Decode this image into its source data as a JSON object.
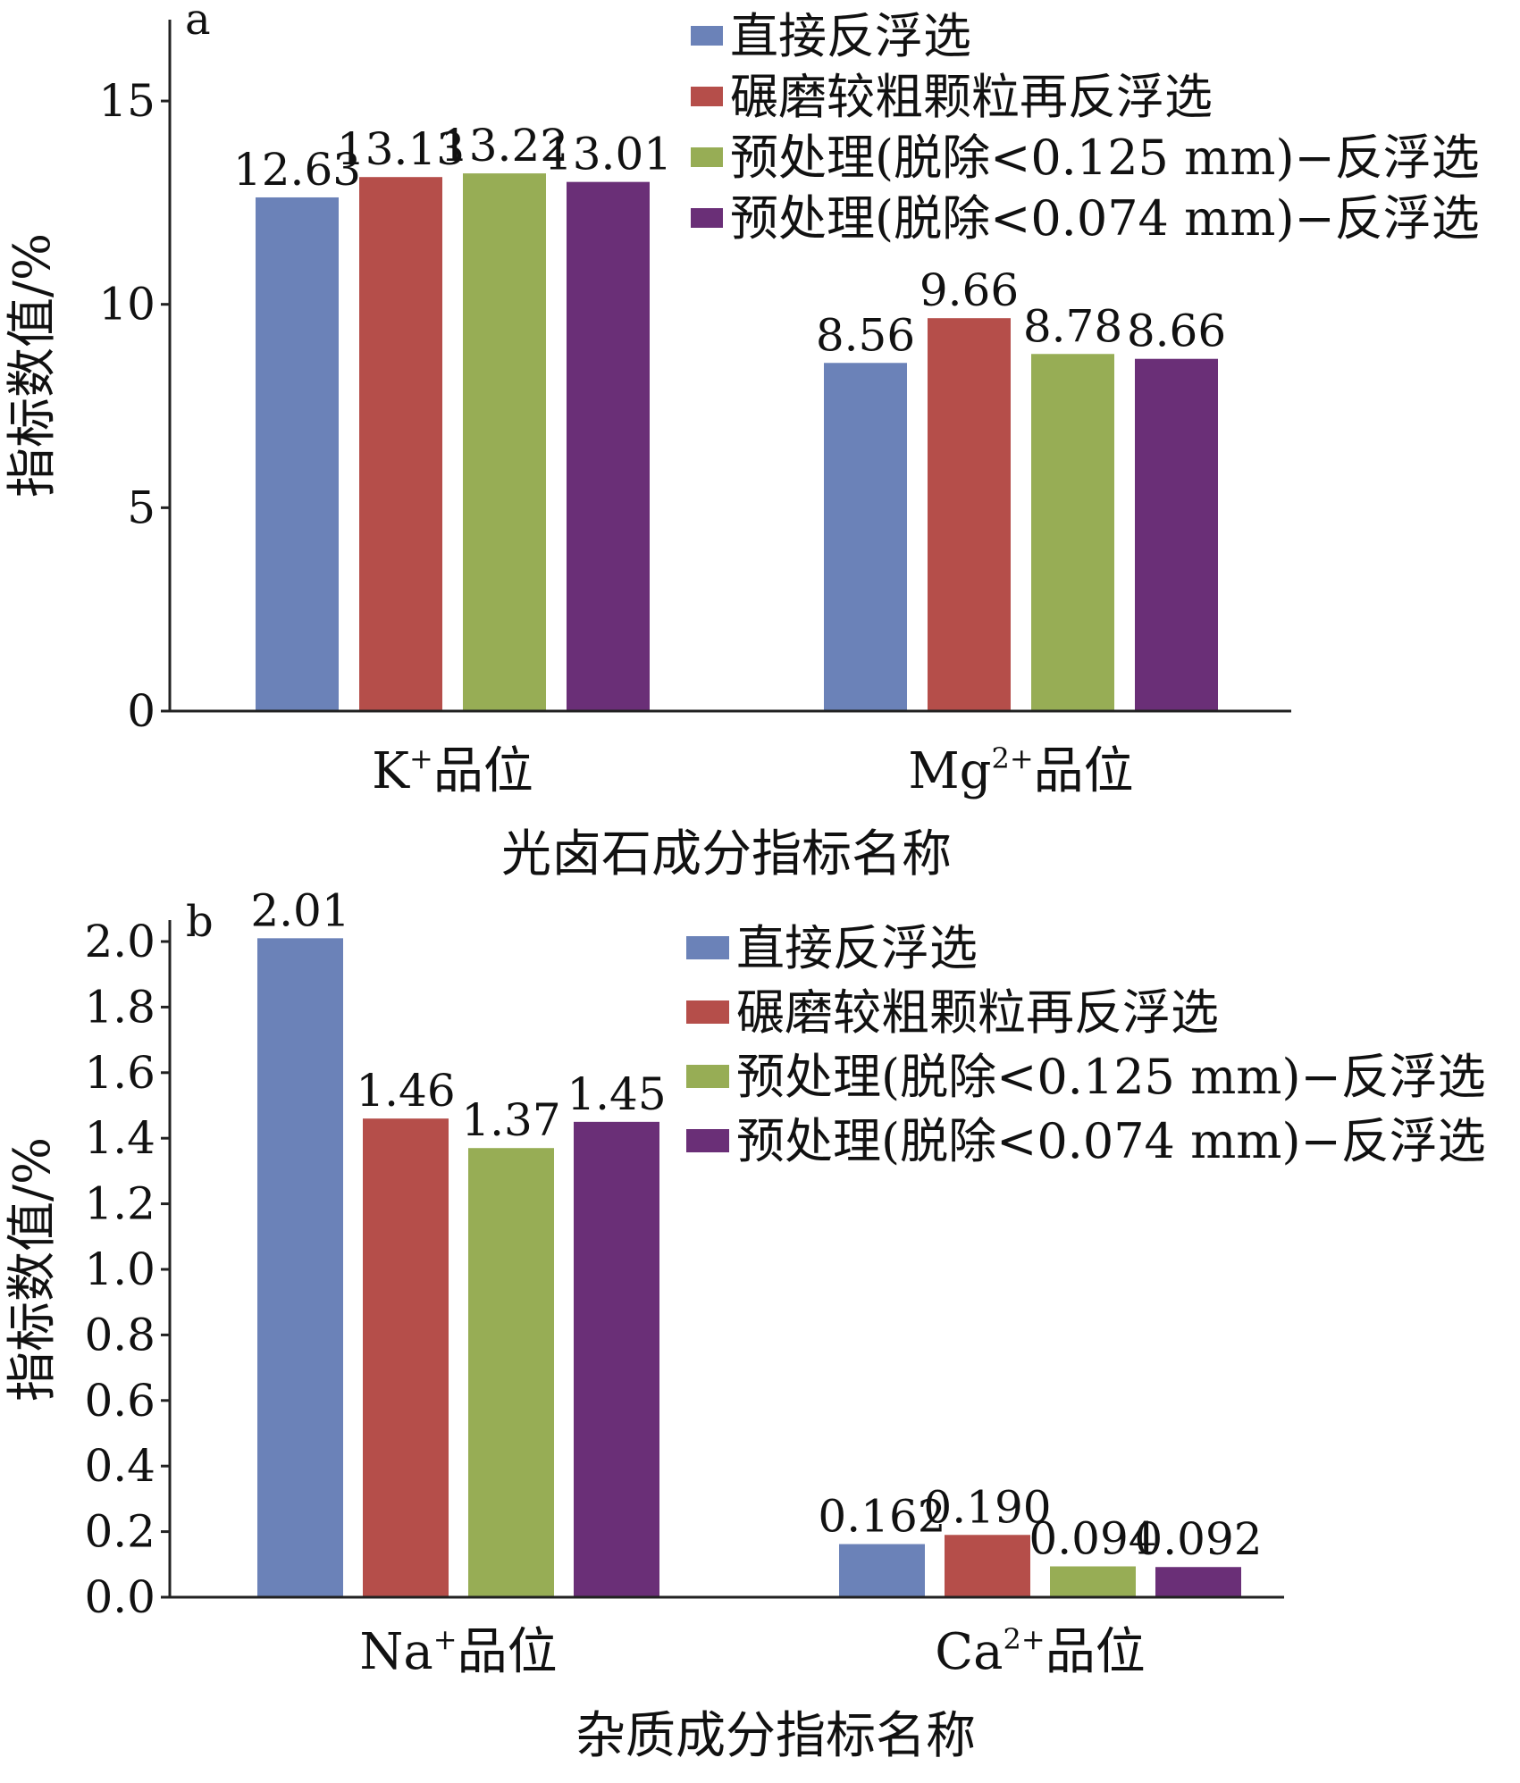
{
  "legend": [
    {
      "name": "直接反浮选",
      "color": "#6b82b8"
    },
    {
      "name": "碾磨较粗颗粒再反浮选",
      "color": "#b54e4a"
    },
    {
      "name": "预处理(脱除<0.125 mm)−反浮选",
      "color": "#97ad55"
    },
    {
      "name": "预处理(脱除<0.074 mm)−反浮选",
      "color": "#6a2f77"
    }
  ],
  "chart_data": [
    {
      "type": "bar",
      "panel": "a",
      "ylabel": "指标数值/%",
      "xlabel": "光卤石成分指标名称",
      "ylim": [
        0,
        17
      ],
      "yticks": [
        "0",
        "5",
        "10",
        "15"
      ],
      "ytick_values": [
        0,
        5,
        10,
        15
      ],
      "categories": [
        {
          "base": "K",
          "sup": "+",
          "tail": "品位"
        },
        {
          "base": "Mg",
          "sup": "2+",
          "tail": "品位"
        }
      ],
      "series": [
        {
          "name": "直接反浮选",
          "color": "#6b82b8",
          "values": [
            12.63,
            8.56
          ],
          "labels": [
            "12.63",
            "8.56"
          ]
        },
        {
          "name": "碾磨较粗颗粒再反浮选",
          "color": "#b54e4a",
          "values": [
            13.13,
            9.66
          ],
          "labels": [
            "13.13",
            "9.66"
          ]
        },
        {
          "name": "预处理(脱除<0.125 mm)−反浮选",
          "color": "#97ad55",
          "values": [
            13.22,
            8.78
          ],
          "labels": [
            "13.22",
            "8.78"
          ]
        },
        {
          "name": "预处理(脱除<0.074 mm)−反浮选",
          "color": "#6a2f77",
          "values": [
            13.01,
            8.66
          ],
          "labels": [
            "13.01",
            "8.66"
          ]
        }
      ],
      "legend_position": "top-right"
    },
    {
      "type": "bar",
      "panel": "b",
      "ylabel": "指标数值/%",
      "xlabel": "杂质成分指标名称",
      "ylim": [
        0,
        2.0
      ],
      "yticks": [
        "0.0",
        "0.2",
        "0.4",
        "0.6",
        "0.8",
        "1.0",
        "1.2",
        "1.4",
        "1.6",
        "1.8",
        "2.0"
      ],
      "ytick_values": [
        0,
        0.2,
        0.4,
        0.6,
        0.8,
        1.0,
        1.2,
        1.4,
        1.6,
        1.8,
        2.0
      ],
      "categories": [
        {
          "base": "Na",
          "sup": "+",
          "tail": "品位"
        },
        {
          "base": "Ca",
          "sup": "2+",
          "tail": "品位"
        }
      ],
      "series": [
        {
          "name": "直接反浮选",
          "color": "#6b82b8",
          "values": [
            2.01,
            0.162
          ],
          "labels": [
            "2.01",
            "0.162"
          ]
        },
        {
          "name": "碾磨较粗颗粒再反浮选",
          "color": "#b54e4a",
          "values": [
            1.46,
            0.19
          ],
          "labels": [
            "1.46",
            "0.190"
          ]
        },
        {
          "name": "预处理(脱除<0.125 mm)−反浮选",
          "color": "#97ad55",
          "values": [
            1.37,
            0.094
          ],
          "labels": [
            "1.37",
            "0.094"
          ]
        },
        {
          "name": "预处理(脱除<0.074 mm)−反浮选",
          "color": "#6a2f77",
          "values": [
            1.45,
            0.092
          ],
          "labels": [
            "1.45",
            "0.092"
          ]
        }
      ],
      "legend_position": "top-right"
    }
  ]
}
